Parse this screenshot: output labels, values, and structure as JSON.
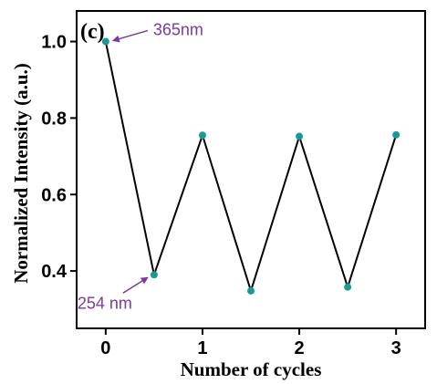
{
  "chart_data": {
    "type": "line",
    "panel_label": "(c)",
    "xlabel": "Number of cycles",
    "ylabel": "Normalized Intensity (a.u.)",
    "xlim": [
      -0.3,
      3.3
    ],
    "ylim": [
      0.25,
      1.08
    ],
    "x_ticks": [
      0,
      1,
      2,
      3
    ],
    "y_ticks": [
      0.4,
      0.6,
      0.8,
      1.0
    ],
    "x_tick_labels": [
      "0",
      "1",
      "2",
      "3"
    ],
    "y_tick_labels": [
      "0.4",
      "0.6",
      "0.8",
      "1.0"
    ],
    "grid": false,
    "colors": {
      "line": "#000000",
      "marker": "#1a9a96",
      "annotation": "#7a3aa0"
    },
    "series": [
      {
        "x": [
          0,
          0.5,
          1,
          1.5,
          2,
          2.5,
          3
        ],
        "values": [
          1.0,
          0.39,
          0.755,
          0.348,
          0.752,
          0.358,
          0.756
        ]
      }
    ],
    "annotations": [
      {
        "text": "365nm",
        "point_x": 0,
        "point_y": 1.0
      },
      {
        "text": "254 nm",
        "point_x": 0.5,
        "point_y": 0.39
      }
    ]
  }
}
